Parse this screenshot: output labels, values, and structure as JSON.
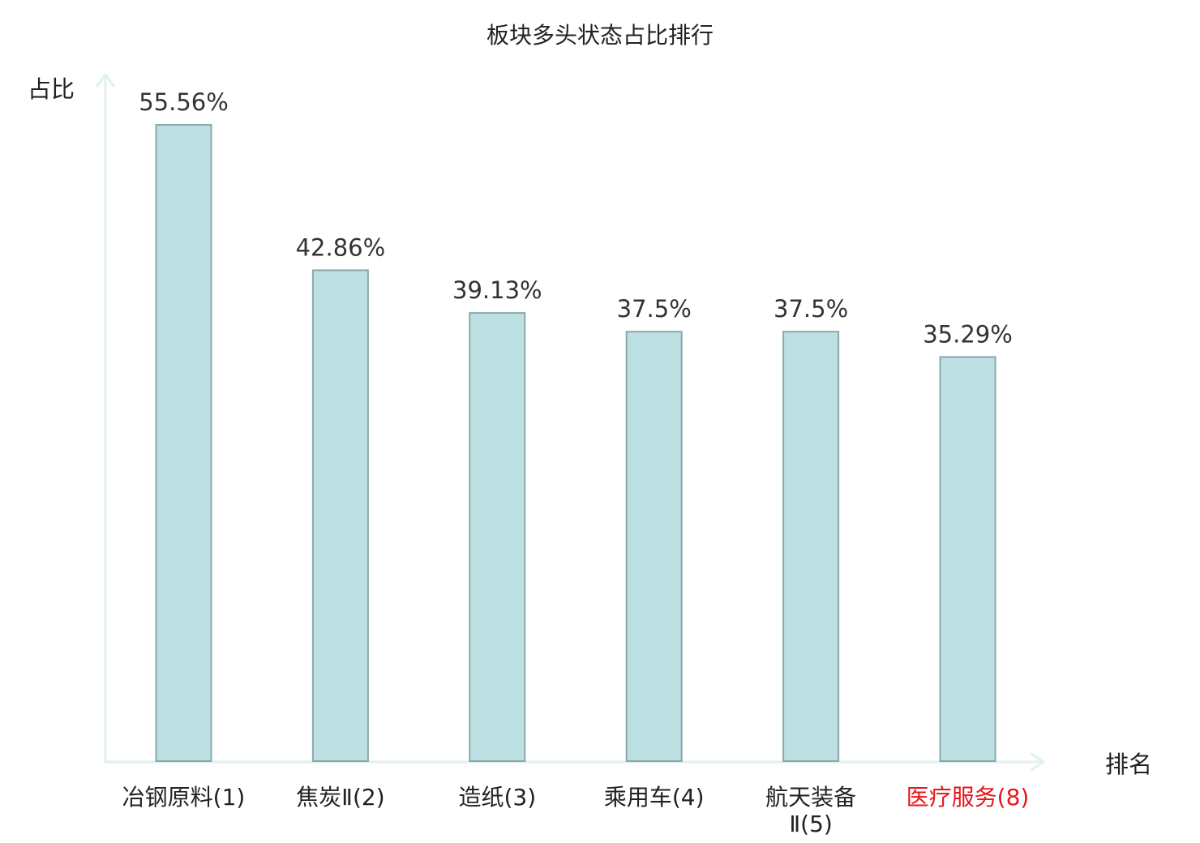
{
  "chart_data": {
    "type": "bar",
    "title": "板块多头状态占比排行",
    "ylabel": "占比",
    "xlabel": "排名",
    "categories": [
      {
        "label": [
          "冶钢原料(1)"
        ],
        "highlight": false
      },
      {
        "label": [
          "焦炭Ⅱ(2)"
        ],
        "highlight": false
      },
      {
        "label": [
          "造纸(3)"
        ],
        "highlight": false
      },
      {
        "label": [
          "乘用车(4)"
        ],
        "highlight": false
      },
      {
        "label": [
          "航天装备",
          "Ⅱ(5)"
        ],
        "highlight": false
      },
      {
        "label": [
          "医疗服务(8)"
        ],
        "highlight": true
      }
    ],
    "values": [
      55.56,
      42.86,
      39.13,
      37.5,
      37.5,
      35.29
    ],
    "value_labels": [
      "55.56%",
      "42.86%",
      "39.13%",
      "37.5%",
      "37.5%",
      "35.29%"
    ],
    "ylim": [
      0,
      55.56
    ],
    "grid": false,
    "colors": {
      "bar_fill": "#bde0e3",
      "bar_stroke": "#8aa8ab",
      "axis": "#dff1ef",
      "highlight_text": "#e8141b",
      "text": "#222222",
      "value_text": "#333333"
    }
  }
}
